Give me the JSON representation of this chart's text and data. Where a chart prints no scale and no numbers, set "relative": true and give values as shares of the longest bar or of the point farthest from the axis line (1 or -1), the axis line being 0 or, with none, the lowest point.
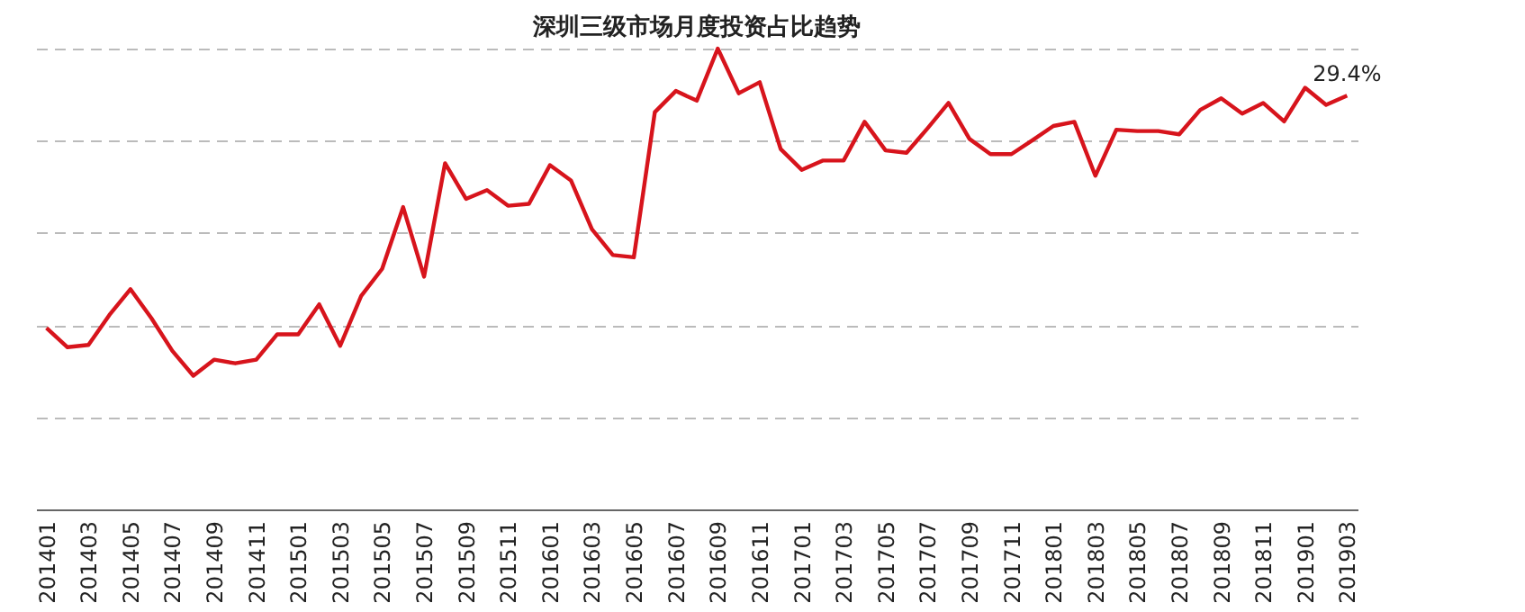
{
  "chart_data": {
    "type": "line",
    "title": "深圳三级市场月度投资占比趋势",
    "relative": true,
    "grid": "y",
    "marker": "none",
    "line_style": "solid",
    "categories": [
      "201401",
      null,
      "201403",
      null,
      "201405",
      null,
      "201407",
      null,
      "201409",
      null,
      "201411",
      null,
      "201501",
      null,
      "201503",
      null,
      "201505",
      null,
      "201507",
      null,
      "201509",
      null,
      "201511",
      null,
      "201601",
      null,
      "201603",
      null,
      "201605",
      null,
      "201607",
      null,
      "201609",
      null,
      "201611",
      null,
      "201701",
      null,
      "201703",
      null,
      "201705",
      null,
      "201707",
      null,
      "201709",
      null,
      "201711",
      null,
      "201801",
      null,
      "201803",
      null,
      "201805",
      null,
      "201807",
      null,
      "201809",
      null,
      "201811",
      null,
      "201901",
      null,
      "201903"
    ],
    "series": [
      {
        "color": "#d7141c",
        "values": [
          0.394,
          0.352,
          0.357,
          0.422,
          0.478,
          0.415,
          0.344,
          0.29,
          0.325,
          0.317,
          0.325,
          0.38,
          0.38,
          0.445,
          0.355,
          0.463,
          0.522,
          0.656,
          0.505,
          0.751,
          0.674,
          0.693,
          0.659,
          0.663,
          0.747,
          0.714,
          0.608,
          0.552,
          0.547,
          0.862,
          0.908,
          0.887,
          1,
          0.903,
          0.927,
          0.782,
          0.737,
          0.757,
          0.757,
          0.841,
          0.779,
          0.774,
          0.827,
          0.882,
          0.804,
          0.771,
          0.771,
          0.801,
          0.832,
          0.841,
          0.724,
          0.824,
          0.821,
          0.821,
          0.814,
          0.867,
          0.892,
          0.859,
          0.882,
          0.842,
          0.915,
          0.878,
          0.898
        ]
      }
    ],
    "annotations": [
      {
        "text": "29.4%",
        "x": "201903",
        "y": 0.898
      }
    ]
  }
}
